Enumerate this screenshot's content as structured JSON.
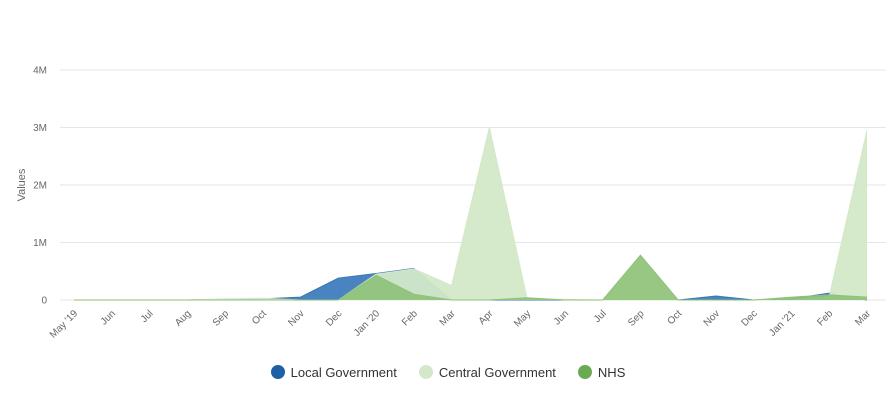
{
  "chart_data": {
    "type": "area",
    "title": "",
    "xlabel": "",
    "ylabel": "Values",
    "ylim": [
      0,
      4000000
    ],
    "yticks": [
      {
        "value": 0,
        "label": "0"
      },
      {
        "value": 1000000,
        "label": "1M"
      },
      {
        "value": 2000000,
        "label": "2M"
      },
      {
        "value": 3000000,
        "label": "3M"
      },
      {
        "value": 4000000,
        "label": "4M"
      }
    ],
    "grid": true,
    "legend_position": "bottom-center",
    "categories": [
      "May '19",
      "Jun",
      "Jul",
      "Aug",
      "Sep",
      "Oct",
      "Nov",
      "Dec",
      "Jan '20",
      "Feb",
      "Mar",
      "Apr",
      "May",
      "Jun",
      "Jul",
      "Sep",
      "Oct",
      "Nov",
      "Dec",
      "Jan '21",
      "Feb",
      "Mar"
    ],
    "series": [
      {
        "name": "Local Government",
        "color": "#3a78bb",
        "legend_color": "#1f5fa6",
        "values": [
          0,
          0,
          0,
          0,
          10000,
          20000,
          50000,
          380000,
          460000,
          550000,
          0,
          0,
          0,
          0,
          0,
          0,
          0,
          70000,
          0,
          20000,
          120000,
          0
        ]
      },
      {
        "name": "Central Government",
        "color": "#d3e8c8",
        "legend_color": "#d3e8c8",
        "values": [
          0,
          0,
          0,
          0,
          20000,
          30000,
          0,
          0,
          450000,
          540000,
          250000,
          3000000,
          20000,
          10000,
          0,
          0,
          0,
          0,
          0,
          0,
          60000,
          2950000
        ]
      },
      {
        "name": "NHS",
        "color": "#8fc27a",
        "legend_color": "#6aaa52",
        "values": [
          0,
          0,
          0,
          0,
          0,
          0,
          0,
          0,
          430000,
          100000,
          0,
          0,
          40000,
          0,
          0,
          780000,
          0,
          0,
          0,
          50000,
          90000,
          50000
        ]
      }
    ]
  }
}
